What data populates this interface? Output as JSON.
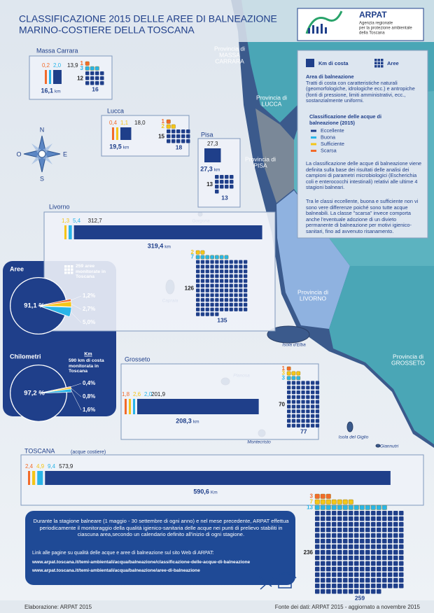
{
  "header": {
    "title_lines": [
      "CLASSIFICAZIONE 2015 DELLE AREE DI BALNEAZIONE",
      "MARINO-COSTIERE  DELLA TOSCANA"
    ]
  },
  "logo": {
    "name": "ARPAT",
    "subtitle_lines": [
      "Agenzia regionale",
      "per la protezione ambientale",
      "della Toscana"
    ]
  },
  "legend": {
    "km_label": "Km di costa",
    "aree_label": "Aree",
    "area_title": "Area di balneazione",
    "area_desc": "Tratti di costa con caratteristiche naturali (geomorfologiche, idrologiche ecc.) e antropiche (fonti di pressione, limiti amministrativi, ecc., sostanzialmente uniformi.",
    "class_title": "Classificazione delle acque di balneazione (2015)",
    "classes": [
      {
        "name": "Eccellente",
        "color": "#1f3f8a"
      },
      {
        "name": "Buona",
        "color": "#29b5e8"
      },
      {
        "name": "Sufficiente",
        "color": "#f5c518"
      },
      {
        "name": "Scarsa",
        "color": "#f26b2a"
      }
    ],
    "text1": "La classificazione delle acque di balneazione viene definita sulla base dei risultati delle analisi dei campioni di parametri microbiologici (Escherichia coli e enterococchi intestinali) relativi alle ultime 4 stagioni balneari.",
    "text2": "Tra le classi eccellente, buona e sufficiente non vi sono vere differenze poiché sono tutte acque balneabili. La classe \"scarsa\" invece comporta anche l'eventuale adozione di un divieto permanente di balneazione per motivi igienico-sanitari, fino ad avvenuto risanamento."
  },
  "compass": {
    "n": "N",
    "e": "E",
    "s": "S",
    "o": "O"
  },
  "provinces": [
    {
      "lines": [
        "Provincia di",
        "MASSA",
        "CARRARA"
      ]
    },
    {
      "lines": [
        "Provincia di",
        "LUCCA"
      ]
    },
    {
      "lines": [
        "Provincia di",
        "PISA"
      ]
    },
    {
      "lines": [
        "Provincia di",
        "LIVORNO"
      ]
    },
    {
      "lines": [
        "Provincia di",
        "GROSSETO"
      ]
    }
  ],
  "islands": [
    "Gorgona",
    "Capraia",
    "Isola d'Elba",
    "Planosa",
    "Montecristo",
    "Isola del Giglio",
    "Giannutri"
  ],
  "regions": [
    {
      "name": "Massa Carrara",
      "km": [
        {
          "value": 0.2,
          "label": "0,2",
          "color": "#f26b2a"
        },
        {
          "value": 2.0,
          "label": "2,0",
          "color": "#29b5e8"
        },
        {
          "value": 13.9,
          "label": "13,9",
          "color": "#1f3f8a"
        }
      ],
      "total_km": {
        "value": 16.1,
        "label": "16,1"
      },
      "unit": "km",
      "aree": [
        {
          "value": 1,
          "color": "#f26b2a"
        },
        {
          "value": 3,
          "color": "#29b5e8"
        },
        {
          "value": 12,
          "color": "#1f3f8a"
        }
      ],
      "total_aree": 16
    },
    {
      "name": "Lucca",
      "km": [
        {
          "value": 0.4,
          "label": "0,4",
          "color": "#f26b2a"
        },
        {
          "value": 1.1,
          "label": "1,1",
          "color": "#f5c518"
        },
        {
          "value": 18.0,
          "label": "18,0",
          "color": "#1f3f8a"
        }
      ],
      "total_km": {
        "value": 19.5,
        "label": "19,5"
      },
      "unit": "km",
      "aree": [
        {
          "value": 1,
          "color": "#f26b2a"
        },
        {
          "value": 2,
          "color": "#f5c518"
        },
        {
          "value": 15,
          "color": "#1f3f8a"
        }
      ],
      "total_aree": 18
    },
    {
      "name": "Pisa",
      "km": [
        {
          "value": 27.3,
          "label": "27,3",
          "color": "#1f3f8a"
        }
      ],
      "total_km": {
        "value": 27.3,
        "label": "27,3"
      },
      "unit": "km",
      "aree": [
        {
          "value": 13,
          "color": "#1f3f8a"
        }
      ],
      "total_aree": 13
    },
    {
      "name": "Livorno",
      "km": [
        {
          "value": 1.3,
          "label": "1,3",
          "color": "#f5c518"
        },
        {
          "value": 5.4,
          "label": "5,4",
          "color": "#29b5e8"
        },
        {
          "value": 312.7,
          "label": "312,7",
          "color": "#1f3f8a"
        }
      ],
      "total_km": {
        "value": 319.4,
        "label": "319,4"
      },
      "unit": "km",
      "aree": [
        {
          "value": 2,
          "color": "#f5c518"
        },
        {
          "value": 7,
          "color": "#29b5e8"
        },
        {
          "value": 126,
          "color": "#1f3f8a"
        }
      ],
      "total_aree": 135
    },
    {
      "name": "Grosseto",
      "km": [
        {
          "value": 1.8,
          "label": "1,8",
          "color": "#f26b2a"
        },
        {
          "value": 2.6,
          "label": "2,6",
          "color": "#f5c518"
        },
        {
          "value": 2.0,
          "label": "2,0",
          "color": "#29b5e8"
        },
        {
          "value": 201.9,
          "label": "201,9",
          "color": "#1f3f8a"
        }
      ],
      "total_km": {
        "value": 208.3,
        "label": "208,3"
      },
      "unit": "km",
      "aree": [
        {
          "value": 1,
          "color": "#f26b2a"
        },
        {
          "value": 3,
          "color": "#f5c518"
        },
        {
          "value": 3,
          "color": "#29b5e8"
        },
        {
          "value": 70,
          "color": "#1f3f8a"
        }
      ],
      "total_aree": 77
    },
    {
      "name": "TOSCANA",
      "note": "(acque costiere)",
      "km": [
        {
          "value": 2.4,
          "label": "2,4",
          "color": "#f26b2a"
        },
        {
          "value": 4.9,
          "label": "4,9",
          "color": "#f5c518"
        },
        {
          "value": 9.4,
          "label": "9,4",
          "color": "#29b5e8"
        },
        {
          "value": 573.9,
          "label": "573,9",
          "color": "#1f3f8a"
        }
      ],
      "total_km": {
        "value": 590.6,
        "label": "590,6"
      },
      "unit": "Km",
      "aree": [
        {
          "value": 3,
          "color": "#f26b2a"
        },
        {
          "value": 7,
          "color": "#f5c518"
        },
        {
          "value": 13,
          "color": "#29b5e8"
        },
        {
          "value": 236,
          "color": "#1f3f8a"
        }
      ],
      "total_aree": 259
    }
  ],
  "pies": [
    {
      "title": "Aree",
      "note": "259 aree monitorate in Toscana",
      "slices": [
        {
          "value": 91.1,
          "label": "91,1 %",
          "color": "#1f3f8a"
        },
        {
          "value": 1.2,
          "label": "1,2%",
          "color": "#f26b2a"
        },
        {
          "value": 2.7,
          "label": "2,7%",
          "color": "#f5c518"
        },
        {
          "value": 5.0,
          "label": "5,0%",
          "color": "#29b5e8"
        }
      ]
    },
    {
      "title": "Chilometri",
      "note_head": "Km",
      "note": "590 km di costa monitorata in Toscana",
      "slices": [
        {
          "value": 97.2,
          "label": "97,2 %",
          "color": "#1f3f8a"
        },
        {
          "value": 0.4,
          "label": "0,4%",
          "color": "#f26b2a"
        },
        {
          "value": 0.8,
          "label": "0,8%",
          "color": "#f5c518"
        },
        {
          "value": 1.6,
          "label": "1,6%",
          "color": "#29b5e8"
        }
      ]
    }
  ],
  "info_box": {
    "text": "Durante la stagione balneare (1 maggio - 30 settembre di ogni anno) e nel mese precedente, ARPAT effettua periodicamente il monitoraggio della qualità igienico-sanitaria delle acque nei punti di prelievo stabiliti in ciascuna area,secondo un calendario definito all'inizio di ogni stagione.",
    "links_intro": "Link alle pagine su qualità delle acque e aree di balneazione sul sito Web di ARPAT:",
    "links": [
      "www.arpat.toscana.it/temi-ambientali/acqua/balneazione/classificazione-delle-acque-di-balneazione",
      "www.arpat.toscana.it/temi-ambientali/acqua/balneazione/aree-di-balneazione"
    ]
  },
  "footer": {
    "left": "Elaborazione: ARPAT 2015",
    "right": "Fonte dei dati: ARPAT 2015 - aggiornato a novembre 2015"
  }
}
